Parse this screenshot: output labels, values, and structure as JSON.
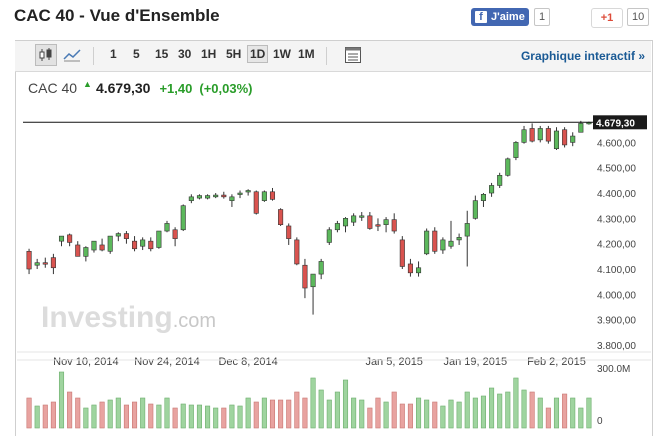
{
  "header": {
    "title": "CAC 40 - Vue d'Ensemble",
    "fb_label": "J'aime",
    "fb_count": "1",
    "gplus_label": "+1",
    "gplus_count": "10"
  },
  "toolbar": {
    "timeframes": [
      "1",
      "5",
      "15",
      "30",
      "1H",
      "5H",
      "1D",
      "1W",
      "1M"
    ],
    "active_timeframe": "1D",
    "interactive_link": "Graphique interactif »"
  },
  "quote": {
    "name": "CAC 40",
    "price": "4.679,30",
    "change": "+1,40",
    "change_pct": "(+0,03%)",
    "direction_color": "#2a9d2a"
  },
  "chart_data": {
    "type": "candlestick",
    "watermark": "Investing.com",
    "current_price_label": "4.679,30",
    "current_price": 4679.3,
    "ylim": [
      3800,
      4720
    ],
    "y_ticks": [
      {
        "value": 3800,
        "label": "3.800,00"
      },
      {
        "value": 3900,
        "label": "3.900,00"
      },
      {
        "value": 4000,
        "label": "4.000,00"
      },
      {
        "value": 4100,
        "label": "4.100,00"
      },
      {
        "value": 4200,
        "label": "4.200,00"
      },
      {
        "value": 4300,
        "label": "4.300,00"
      },
      {
        "value": 4400,
        "label": "4.400,00"
      },
      {
        "value": 4500,
        "label": "4.500,00"
      },
      {
        "value": 4600,
        "label": "4.600,00"
      }
    ],
    "x_ticks": [
      {
        "index": 7,
        "label": "Nov 10, 2014"
      },
      {
        "index": 17,
        "label": "Nov 24, 2014"
      },
      {
        "index": 27,
        "label": "Dec 8, 2014"
      },
      {
        "index": 45,
        "label": "Jan 5, 2015"
      },
      {
        "index": 55,
        "label": "Jan 19, 2015"
      },
      {
        "index": 65,
        "label": "Feb 2, 2015"
      }
    ],
    "colors": {
      "up": "#5cb85c",
      "down": "#d9534f",
      "vol_up": "#9fd49f",
      "vol_down": "#e8a3a0"
    },
    "volume_axis_label": "300.0M",
    "volume_zero_label": "0",
    "volume_max": 300,
    "candles": [
      {
        "o": 4170,
        "h": 4180,
        "l": 4080,
        "c": 4100
      },
      {
        "o": 4115,
        "h": 4140,
        "l": 4100,
        "c": 4125
      },
      {
        "o": 4125,
        "h": 4145,
        "l": 4105,
        "c": 4120
      },
      {
        "o": 4145,
        "h": 4160,
        "l": 4080,
        "c": 4105
      },
      {
        "o": 4210,
        "h": 4230,
        "l": 4190,
        "c": 4230
      },
      {
        "o": 4235,
        "h": 4240,
        "l": 4190,
        "c": 4205
      },
      {
        "o": 4195,
        "h": 4210,
        "l": 4150,
        "c": 4150
      },
      {
        "o": 4150,
        "h": 4190,
        "l": 4130,
        "c": 4185
      },
      {
        "o": 4175,
        "h": 4210,
        "l": 4165,
        "c": 4210
      },
      {
        "o": 4195,
        "h": 4220,
        "l": 4170,
        "c": 4175
      },
      {
        "o": 4170,
        "h": 4230,
        "l": 4160,
        "c": 4230
      },
      {
        "o": 4230,
        "h": 4245,
        "l": 4210,
        "c": 4240
      },
      {
        "o": 4240,
        "h": 4250,
        "l": 4200,
        "c": 4220
      },
      {
        "o": 4210,
        "h": 4230,
        "l": 4170,
        "c": 4180
      },
      {
        "o": 4190,
        "h": 4225,
        "l": 4175,
        "c": 4215
      },
      {
        "o": 4210,
        "h": 4225,
        "l": 4170,
        "c": 4180
      },
      {
        "o": 4185,
        "h": 4250,
        "l": 4180,
        "c": 4250
      },
      {
        "o": 4250,
        "h": 4290,
        "l": 4245,
        "c": 4280
      },
      {
        "o": 4255,
        "h": 4265,
        "l": 4190,
        "c": 4220
      },
      {
        "o": 4255,
        "h": 4355,
        "l": 4250,
        "c": 4350
      },
      {
        "o": 4370,
        "h": 4395,
        "l": 4360,
        "c": 4385
      },
      {
        "o": 4380,
        "h": 4395,
        "l": 4375,
        "c": 4390
      },
      {
        "o": 4380,
        "h": 4395,
        "l": 4375,
        "c": 4390
      },
      {
        "o": 4385,
        "h": 4400,
        "l": 4380,
        "c": 4392
      },
      {
        "o": 4392,
        "h": 4405,
        "l": 4378,
        "c": 4385
      },
      {
        "o": 4370,
        "h": 4395,
        "l": 4345,
        "c": 4385
      },
      {
        "o": 4395,
        "h": 4410,
        "l": 4380,
        "c": 4400
      },
      {
        "o": 4405,
        "h": 4415,
        "l": 4390,
        "c": 4410
      },
      {
        "o": 4405,
        "h": 4410,
        "l": 4315,
        "c": 4320
      },
      {
        "o": 4370,
        "h": 4410,
        "l": 4365,
        "c": 4405
      },
      {
        "o": 4405,
        "h": 4420,
        "l": 4370,
        "c": 4375
      },
      {
        "o": 4335,
        "h": 4340,
        "l": 4270,
        "c": 4275
      },
      {
        "o": 4270,
        "h": 4280,
        "l": 4195,
        "c": 4220
      },
      {
        "o": 4215,
        "h": 4225,
        "l": 4115,
        "c": 4120
      },
      {
        "o": 4115,
        "h": 4140,
        "l": 3985,
        "c": 4025
      },
      {
        "o": 4030,
        "h": 4080,
        "l": 3920,
        "c": 4080
      },
      {
        "o": 4080,
        "h": 4140,
        "l": 4060,
        "c": 4130
      },
      {
        "o": 4205,
        "h": 4265,
        "l": 4195,
        "c": 4255
      },
      {
        "o": 4255,
        "h": 4290,
        "l": 4245,
        "c": 4280
      },
      {
        "o": 4270,
        "h": 4305,
        "l": 4245,
        "c": 4300
      },
      {
        "o": 4285,
        "h": 4320,
        "l": 4270,
        "c": 4310
      },
      {
        "o": 4305,
        "h": 4325,
        "l": 4290,
        "c": 4310
      },
      {
        "o": 4310,
        "h": 4325,
        "l": 4255,
        "c": 4260
      },
      {
        "o": 4275,
        "h": 4300,
        "l": 4250,
        "c": 4270
      },
      {
        "o": 4275,
        "h": 4305,
        "l": 4245,
        "c": 4295
      },
      {
        "o": 4295,
        "h": 4320,
        "l": 4240,
        "c": 4250
      },
      {
        "o": 4215,
        "h": 4230,
        "l": 4100,
        "c": 4110
      },
      {
        "o": 4120,
        "h": 4140,
        "l": 4070,
        "c": 4085
      },
      {
        "o": 4085,
        "h": 4130,
        "l": 4070,
        "c": 4105
      },
      {
        "o": 4160,
        "h": 4260,
        "l": 4155,
        "c": 4250
      },
      {
        "o": 4250,
        "h": 4265,
        "l": 4160,
        "c": 4170
      },
      {
        "o": 4175,
        "h": 4225,
        "l": 4160,
        "c": 4215
      },
      {
        "o": 4190,
        "h": 4290,
        "l": 4180,
        "c": 4210
      },
      {
        "o": 4215,
        "h": 4240,
        "l": 4195,
        "c": 4225
      },
      {
        "o": 4230,
        "h": 4330,
        "l": 4110,
        "c": 4280
      },
      {
        "o": 4300,
        "h": 4390,
        "l": 4295,
        "c": 4370
      },
      {
        "o": 4370,
        "h": 4400,
        "l": 4345,
        "c": 4395
      },
      {
        "o": 4400,
        "h": 4440,
        "l": 4385,
        "c": 4430
      },
      {
        "o": 4430,
        "h": 4480,
        "l": 4420,
        "c": 4470
      },
      {
        "o": 4470,
        "h": 4540,
        "l": 4465,
        "c": 4535
      },
      {
        "o": 4540,
        "h": 4605,
        "l": 4530,
        "c": 4600
      },
      {
        "o": 4600,
        "h": 4665,
        "l": 4595,
        "c": 4650
      },
      {
        "o": 4655,
        "h": 4675,
        "l": 4600,
        "c": 4605
      },
      {
        "o": 4610,
        "h": 4665,
        "l": 4600,
        "c": 4655
      },
      {
        "o": 4655,
        "h": 4665,
        "l": 4595,
        "c": 4605
      },
      {
        "o": 4575,
        "h": 4660,
        "l": 4570,
        "c": 4645
      },
      {
        "o": 4650,
        "h": 4660,
        "l": 4580,
        "c": 4590
      },
      {
        "o": 4600,
        "h": 4640,
        "l": 4585,
        "c": 4625
      },
      {
        "o": 4640,
        "h": 4685,
        "l": 4640,
        "c": 4675
      },
      {
        "o": 4677,
        "h": 4682,
        "l": 4670,
        "c": 4679
      }
    ],
    "volumes": [
      150,
      110,
      115,
      130,
      280,
      180,
      150,
      100,
      115,
      130,
      140,
      150,
      115,
      130,
      150,
      120,
      115,
      150,
      100,
      120,
      115,
      115,
      110,
      100,
      100,
      115,
      110,
      150,
      130,
      150,
      140,
      140,
      140,
      180,
      150,
      250,
      190,
      140,
      180,
      240,
      150,
      140,
      100,
      150,
      130,
      180,
      120,
      120,
      150,
      140,
      130,
      110,
      140,
      130,
      180,
      150,
      160,
      200,
      170,
      180,
      250,
      190,
      180,
      150,
      100,
      150,
      170,
      150,
      100,
      150
    ]
  }
}
